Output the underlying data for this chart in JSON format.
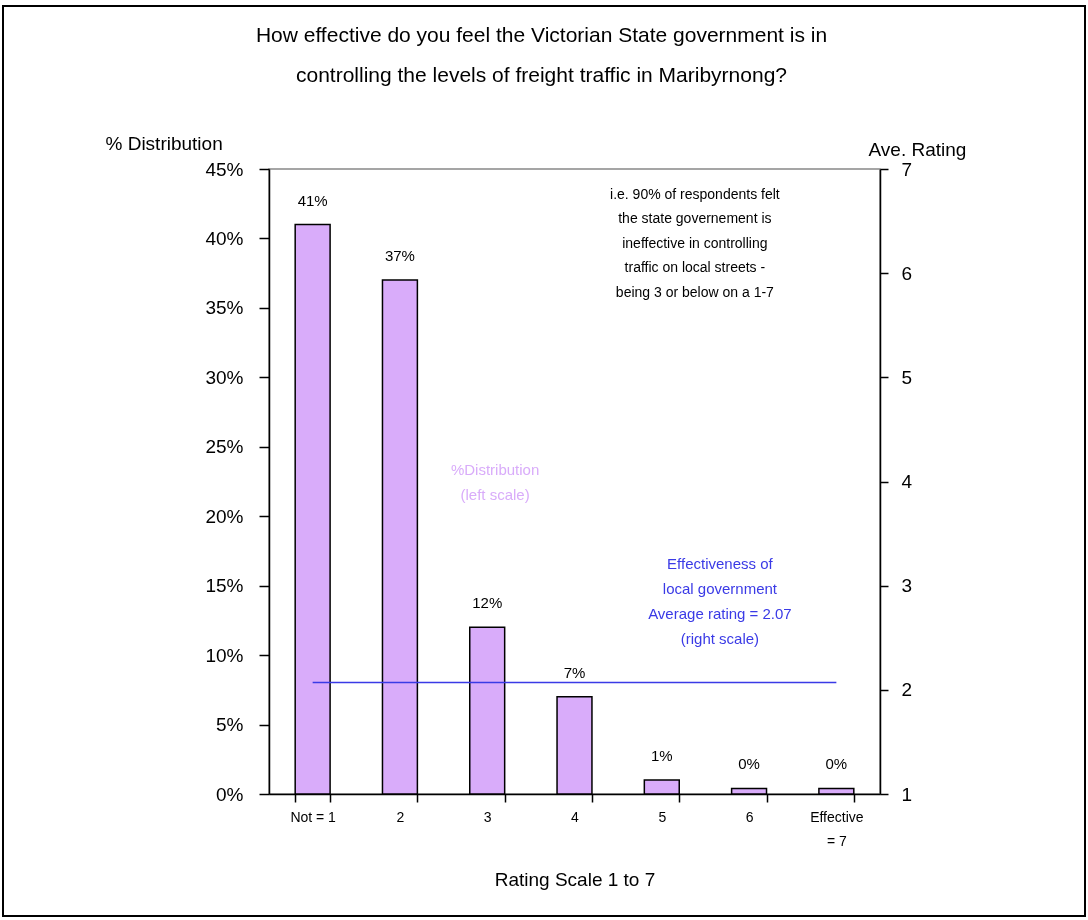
{
  "chart_data": {
    "type": "bar",
    "title": "How effective do you feel the Victorian State government is in controlling the levels of freight traffic in Maribyrnong?",
    "xlabel": "Rating Scale 1 to 7",
    "ylabel": "% Distribution",
    "y2label": "Ave. Rating",
    "categories": [
      "Not = 1",
      "2",
      "3",
      "4",
      "5",
      "6",
      "Effective = 7"
    ],
    "series": [
      {
        "name": "%Distribution (left scale)",
        "color": "#d9acfa",
        "values": [
          41,
          37,
          12,
          7,
          1,
          0.4,
          0.4
        ],
        "value_labels": [
          "41%",
          "37%",
          "12%",
          "7%",
          "1%",
          "0%",
          "0%"
        ]
      },
      {
        "name": "Effectiveness of local government Average rating = 2.07 (right scale)",
        "type": "line",
        "axis": "y2",
        "color": "#3a3ae6",
        "values": [
          2.07,
          2.07,
          2.07,
          2.07,
          2.07,
          2.07,
          2.07
        ]
      }
    ],
    "ylim": [
      0,
      45
    ],
    "yticks": [
      {
        "value": 0,
        "label": "0%"
      },
      {
        "value": 5,
        "label": "5%"
      },
      {
        "value": 10,
        "label": "10%"
      },
      {
        "value": 15,
        "label": "15%"
      },
      {
        "value": 20,
        "label": "20%"
      },
      {
        "value": 25,
        "label": "25%"
      },
      {
        "value": 30,
        "label": "30%"
      },
      {
        "value": 35,
        "label": "35%"
      },
      {
        "value": 40,
        "label": "40%"
      },
      {
        "value": 45,
        "label": "45%"
      }
    ],
    "y2lim": [
      1,
      7
    ],
    "y2ticks": [
      1,
      2,
      3,
      4,
      5,
      6,
      7
    ],
    "annotations": [
      "i.e. 90% of respondents felt the state governement is ineffective in controlling traffic on local streets - being 3 or below on a 1-7"
    ]
  }
}
